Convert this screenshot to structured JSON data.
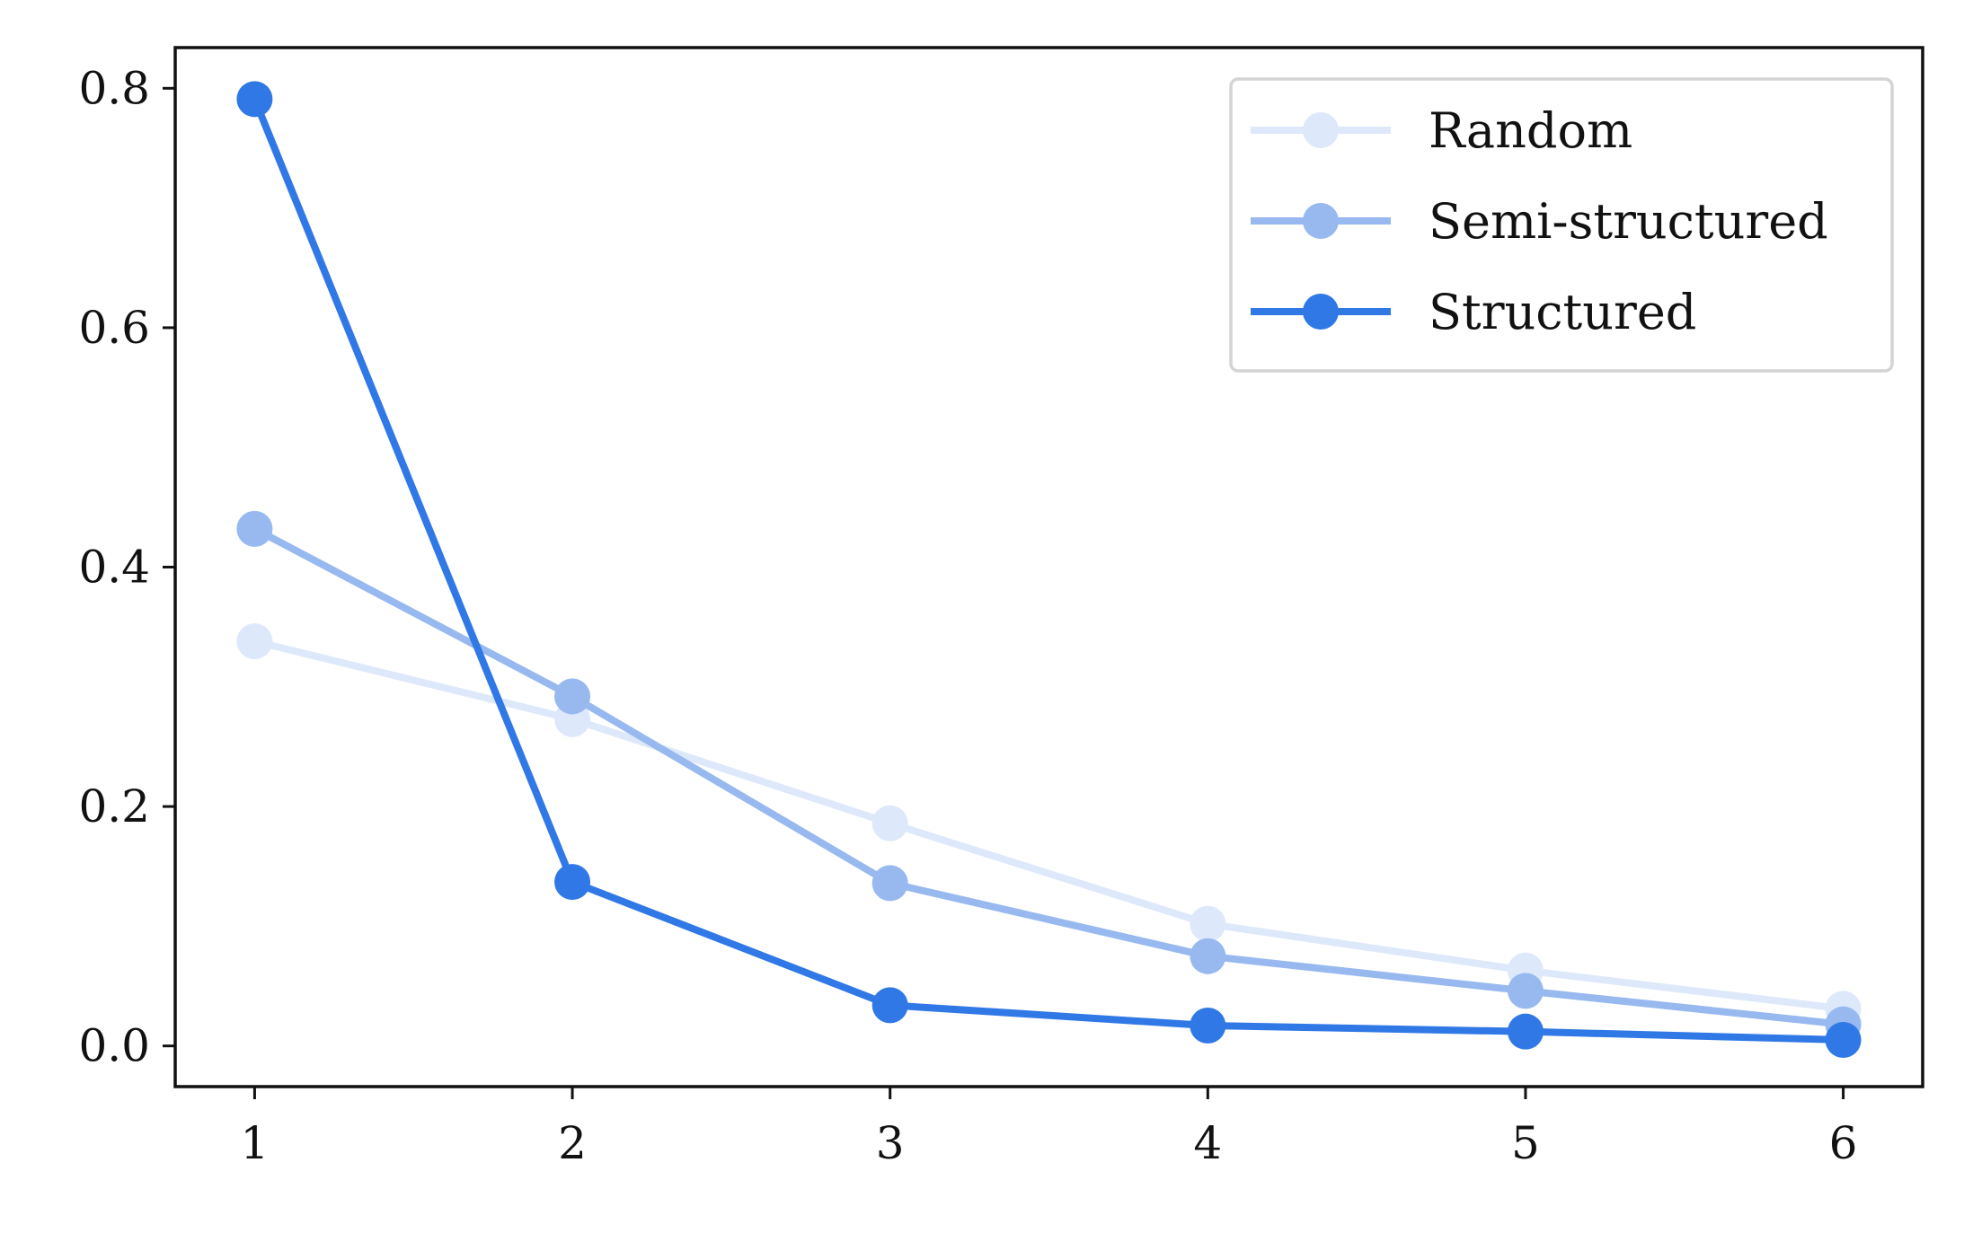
{
  "chart_data": {
    "type": "line",
    "title": "",
    "xlabel": "",
    "ylabel": "",
    "x": [
      1,
      2,
      3,
      4,
      5,
      6
    ],
    "xlim": [
      0.75,
      6.25
    ],
    "ylim": [
      -0.034,
      0.834
    ],
    "xticks": [
      1,
      2,
      3,
      4,
      5,
      6
    ],
    "yticks": [
      0.0,
      0.2,
      0.4,
      0.6,
      0.8
    ],
    "ytick_labels": [
      "0.0",
      "0.2",
      "0.4",
      "0.6",
      "0.8"
    ],
    "grid": false,
    "legend_position": "top-right",
    "series": [
      {
        "name": "Random",
        "color": "#dde9fb",
        "values": [
          0.338,
          0.273,
          0.186,
          0.102,
          0.063,
          0.031
        ]
      },
      {
        "name": "Semi-structured",
        "color": "#97b9ef",
        "values": [
          0.432,
          0.292,
          0.136,
          0.075,
          0.046,
          0.018
        ]
      },
      {
        "name": "Structured",
        "color": "#3078e6",
        "values": [
          0.791,
          0.137,
          0.034,
          0.017,
          0.012,
          0.005
        ]
      }
    ]
  }
}
